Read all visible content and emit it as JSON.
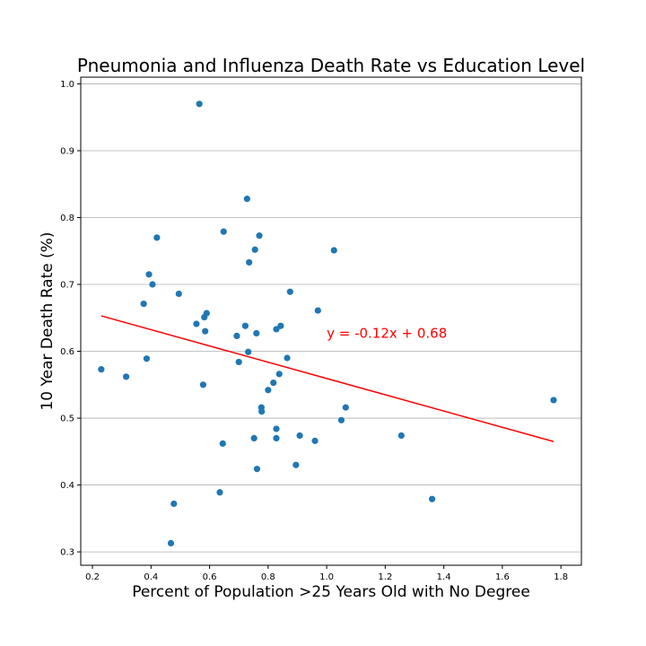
{
  "chart_data": {
    "type": "scatter",
    "title": "Pneumonia and Influenza Death Rate vs Education Level",
    "xlabel": "Percent of Population >25 Years Old with No Degree",
    "ylabel": "10 Year Death Rate (%)",
    "xlim": [
      0.16,
      1.87
    ],
    "ylim": [
      0.28,
      1.01
    ],
    "xticks": [
      0.2,
      0.4,
      0.6,
      0.8,
      1.0,
      1.2,
      1.4,
      1.6,
      1.8
    ],
    "xtick_labels": [
      "0.2",
      "0.4",
      "0.6",
      "0.8",
      "1.0",
      "1.2",
      "1.4",
      "1.6",
      "1.8"
    ],
    "yticks": [
      0.3,
      0.4,
      0.5,
      0.6,
      0.7,
      0.8,
      0.9,
      1.0
    ],
    "ytick_labels": [
      "0.3",
      "0.4",
      "0.5",
      "0.6",
      "0.7",
      "0.8",
      "0.9",
      "1.0"
    ],
    "grid": "horizontal",
    "point_color": "#1f77b4",
    "line_color": "#ff0000",
    "points": [
      {
        "x": 0.23,
        "y": 0.573
      },
      {
        "x": 0.315,
        "y": 0.562
      },
      {
        "x": 0.375,
        "y": 0.671
      },
      {
        "x": 0.385,
        "y": 0.589
      },
      {
        "x": 0.393,
        "y": 0.715
      },
      {
        "x": 0.405,
        "y": 0.7
      },
      {
        "x": 0.42,
        "y": 0.77
      },
      {
        "x": 0.468,
        "y": 0.313
      },
      {
        "x": 0.478,
        "y": 0.372
      },
      {
        "x": 0.495,
        "y": 0.686
      },
      {
        "x": 0.555,
        "y": 0.641
      },
      {
        "x": 0.565,
        "y": 0.97
      },
      {
        "x": 0.578,
        "y": 0.55
      },
      {
        "x": 0.582,
        "y": 0.651
      },
      {
        "x": 0.585,
        "y": 0.63
      },
      {
        "x": 0.59,
        "y": 0.657
      },
      {
        "x": 0.635,
        "y": 0.389
      },
      {
        "x": 0.645,
        "y": 0.462
      },
      {
        "x": 0.648,
        "y": 0.779
      },
      {
        "x": 0.693,
        "y": 0.623
      },
      {
        "x": 0.7,
        "y": 0.584
      },
      {
        "x": 0.722,
        "y": 0.638
      },
      {
        "x": 0.728,
        "y": 0.828
      },
      {
        "x": 0.732,
        "y": 0.599
      },
      {
        "x": 0.735,
        "y": 0.733
      },
      {
        "x": 0.752,
        "y": 0.47
      },
      {
        "x": 0.755,
        "y": 0.752
      },
      {
        "x": 0.76,
        "y": 0.627
      },
      {
        "x": 0.762,
        "y": 0.424
      },
      {
        "x": 0.77,
        "y": 0.773
      },
      {
        "x": 0.777,
        "y": 0.516
      },
      {
        "x": 0.778,
        "y": 0.51
      },
      {
        "x": 0.8,
        "y": 0.542
      },
      {
        "x": 0.818,
        "y": 0.553
      },
      {
        "x": 0.828,
        "y": 0.633
      },
      {
        "x": 0.828,
        "y": 0.484
      },
      {
        "x": 0.828,
        "y": 0.47
      },
      {
        "x": 0.838,
        "y": 0.566
      },
      {
        "x": 0.843,
        "y": 0.638
      },
      {
        "x": 0.865,
        "y": 0.59
      },
      {
        "x": 0.875,
        "y": 0.689
      },
      {
        "x": 0.895,
        "y": 0.43
      },
      {
        "x": 0.908,
        "y": 0.474
      },
      {
        "x": 0.96,
        "y": 0.466
      },
      {
        "x": 0.97,
        "y": 0.661
      },
      {
        "x": 1.025,
        "y": 0.751
      },
      {
        "x": 1.05,
        "y": 0.497
      },
      {
        "x": 1.065,
        "y": 0.516
      },
      {
        "x": 1.255,
        "y": 0.474
      },
      {
        "x": 1.36,
        "y": 0.379
      },
      {
        "x": 1.775,
        "y": 0.527
      }
    ],
    "trendline": {
      "x": [
        0.23,
        1.775
      ],
      "y": [
        0.653,
        0.465
      ]
    },
    "annotation": {
      "text": "y = -0.12x + 0.68",
      "x": 1.0,
      "y": 0.62
    }
  }
}
